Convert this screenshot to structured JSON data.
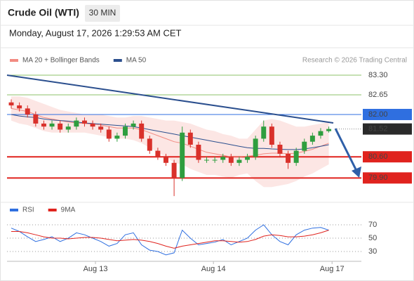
{
  "header": {
    "title": "Crude Oil (WTI)",
    "timeframe": "30 MIN",
    "timestamp": "Monday, August 17, 2026 1:29:53 AM CET",
    "credit": "Research © 2026 Trading Central"
  },
  "chart_data": [
    {
      "type": "candlestick",
      "xlim": [
        -0.52,
        43.0
      ],
      "ylim": [
        79.28,
        83.58
      ],
      "up_color": "#2f9e3f",
      "down_color": "#d9312b",
      "open": [
        82.4,
        82.3,
        82.2,
        82.0,
        81.7,
        81.6,
        81.7,
        81.5,
        81.6,
        81.8,
        81.7,
        81.6,
        81.5,
        81.2,
        81.3,
        81.6,
        81.7,
        81.2,
        80.8,
        80.6,
        80.4,
        79.9,
        81.4,
        81.0,
        80.5,
        80.5,
        80.5,
        80.6,
        80.4,
        80.5,
        80.6,
        81.2,
        81.6,
        81.0,
        80.7,
        80.4,
        80.8,
        81.1,
        81.3,
        81.45
      ],
      "high": [
        82.5,
        82.4,
        82.3,
        82.1,
        81.8,
        81.8,
        81.8,
        81.7,
        81.9,
        81.9,
        81.8,
        81.7,
        81.6,
        81.4,
        81.7,
        81.8,
        81.8,
        81.3,
        80.9,
        80.7,
        80.5,
        81.6,
        81.5,
        81.1,
        80.6,
        80.6,
        80.7,
        80.7,
        80.6,
        80.7,
        81.3,
        81.8,
        81.7,
        81.1,
        80.8,
        80.9,
        81.2,
        81.4,
        81.55,
        81.6
      ],
      "low": [
        82.2,
        82.1,
        81.9,
        81.6,
        81.5,
        81.5,
        81.4,
        81.4,
        81.5,
        81.6,
        81.5,
        81.4,
        81.1,
        81.1,
        81.2,
        81.5,
        81.1,
        80.7,
        80.5,
        80.3,
        79.3,
        79.8,
        80.9,
        80.4,
        80.4,
        80.4,
        80.4,
        80.3,
        80.3,
        80.4,
        80.5,
        81.1,
        80.9,
        80.6,
        80.2,
        80.3,
        80.7,
        81.0,
        81.2,
        81.4
      ],
      "close": [
        82.3,
        82.2,
        82.0,
        81.7,
        81.6,
        81.7,
        81.5,
        81.6,
        81.8,
        81.7,
        81.6,
        81.5,
        81.2,
        81.3,
        81.6,
        81.7,
        81.2,
        80.8,
        80.6,
        80.4,
        79.9,
        81.4,
        81.0,
        80.5,
        80.5,
        80.5,
        80.6,
        80.4,
        80.5,
        80.6,
        81.2,
        81.6,
        81.0,
        80.7,
        80.4,
        80.8,
        81.1,
        81.3,
        81.45,
        81.52
      ],
      "series": [
        {
          "name": "MA 20 + Bollinger Bands",
          "color": "#f28b82",
          "values": [
            82.2,
            82.15,
            82.1,
            82.0,
            81.9,
            81.85,
            81.8,
            81.75,
            81.72,
            81.7,
            81.68,
            81.65,
            81.6,
            81.55,
            81.55,
            81.55,
            81.5,
            81.4,
            81.3,
            81.2,
            81.1,
            81.05,
            80.95,
            80.85,
            80.75,
            80.7,
            80.65,
            80.6,
            80.6,
            80.62,
            80.65,
            80.7,
            80.72,
            80.72,
            80.7,
            80.72,
            80.78,
            80.85,
            80.95,
            81.05
          ],
          "upper": [
            82.6,
            82.6,
            82.55,
            82.45,
            82.35,
            82.25,
            82.15,
            82.1,
            82.05,
            82.0,
            82.0,
            82.0,
            81.95,
            81.9,
            81.9,
            81.95,
            81.95,
            81.9,
            81.85,
            81.8,
            81.8,
            81.75,
            81.7,
            81.6,
            81.5,
            81.45,
            81.35,
            81.3,
            81.2,
            81.2,
            81.5,
            81.8,
            81.85,
            81.8,
            81.7,
            81.6,
            81.6,
            81.65,
            81.7,
            81.75
          ],
          "lower": [
            81.8,
            81.7,
            81.65,
            81.55,
            81.45,
            81.4,
            81.4,
            81.4,
            81.4,
            81.4,
            81.35,
            81.3,
            81.25,
            81.2,
            81.2,
            81.15,
            81.05,
            80.9,
            80.75,
            80.6,
            80.4,
            80.35,
            80.2,
            80.1,
            80.0,
            80.0,
            79.95,
            79.9,
            80.0,
            80.05,
            79.8,
            79.6,
            79.6,
            79.65,
            79.7,
            79.8,
            79.95,
            80.05,
            80.2,
            80.35
          ]
        },
        {
          "name": "MA 50",
          "color": "#2b4f8e",
          "values": [
            82.0,
            81.95,
            81.92,
            81.9,
            81.85,
            81.82,
            81.8,
            81.78,
            81.75,
            81.72,
            81.7,
            81.68,
            81.66,
            81.64,
            81.62,
            81.6,
            81.55,
            81.5,
            81.45,
            81.4,
            81.35,
            81.3,
            81.25,
            81.2,
            81.15,
            81.1,
            81.05,
            81.0,
            80.95,
            80.9,
            80.88,
            80.88,
            80.86,
            80.85,
            80.84,
            80.84,
            80.86,
            80.9,
            80.95,
            81.0
          ]
        }
      ],
      "levels": [
        {
          "value": 83.3,
          "label": "83.30",
          "color": "#8cc26a",
          "box": false
        },
        {
          "value": 82.65,
          "label": "82.65",
          "color": "#8cc26a",
          "box": false
        },
        {
          "value": 82.0,
          "label": "82.00",
          "color": "#2f6fe0",
          "box": true
        },
        {
          "value": 81.52,
          "label": "81.52",
          "color": "#2a2a2a",
          "box": true
        },
        {
          "value": 80.6,
          "label": "80.60",
          "color": "#e0231e",
          "box": true
        },
        {
          "value": 79.9,
          "label": "79.90",
          "color": "#e0231e",
          "box": true
        }
      ]
    },
    {
      "type": "line",
      "xlim": [
        -0.52,
        43.0
      ],
      "ylim": [
        19.5,
        80.5
      ],
      "yticks": [
        30,
        50,
        70
      ],
      "xticks": [
        {
          "value": 10.34,
          "label": "Aug 13"
        },
        {
          "value": 24.83,
          "label": "Aug 14"
        },
        {
          "value": 39.4,
          "label": "Aug 17"
        }
      ],
      "series": [
        {
          "name": "RSI",
          "color": "#2f6fe0",
          "values": [
            65,
            60,
            52,
            45,
            48,
            52,
            45,
            50,
            58,
            55,
            50,
            45,
            38,
            42,
            55,
            58,
            40,
            32,
            30,
            25,
            28,
            62,
            50,
            40,
            42,
            44,
            48,
            40,
            45,
            50,
            62,
            70,
            55,
            45,
            40,
            55,
            62,
            65,
            66,
            62
          ]
        },
        {
          "name": "9MA",
          "color": "#e0231e",
          "values": [
            60,
            60,
            58,
            55,
            52,
            50,
            50,
            49,
            50,
            51,
            51,
            50,
            48,
            46,
            47,
            48,
            47,
            45,
            42,
            38,
            35,
            38,
            40,
            42,
            44,
            46,
            46,
            45,
            44,
            45,
            48,
            53,
            55,
            54,
            52,
            52,
            53,
            55,
            58,
            62
          ]
        }
      ]
    }
  ]
}
